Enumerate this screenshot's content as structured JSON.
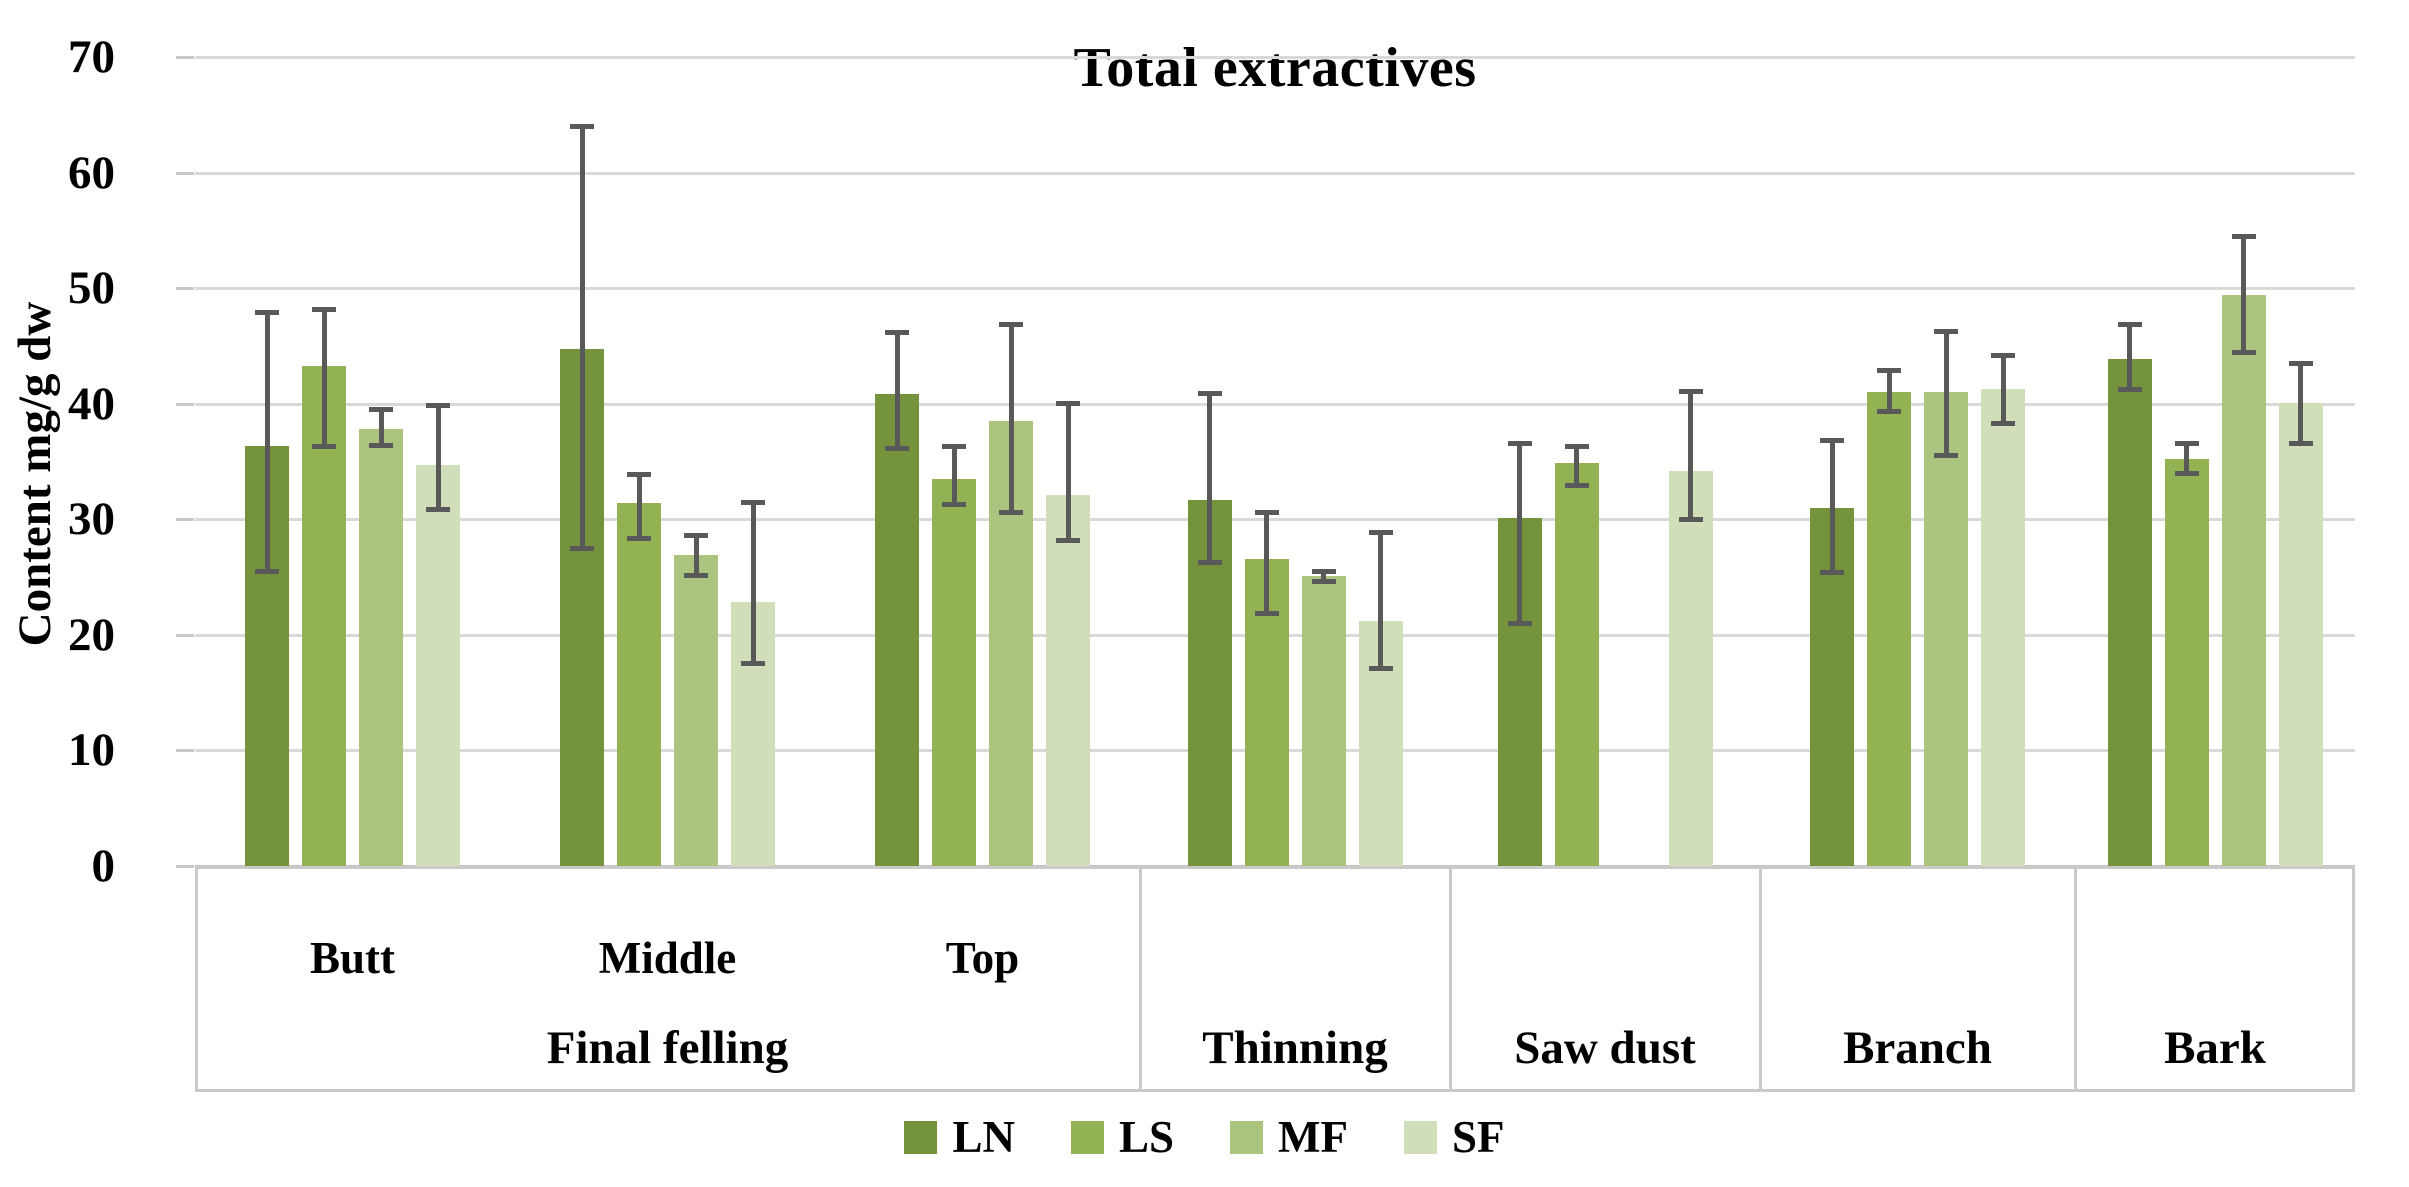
{
  "title": "Total extractives",
  "y_axis": {
    "label": "Content mg/g dw",
    "min": 0,
    "max": 70,
    "step": 10,
    "tick_labels": [
      "0",
      "10",
      "20",
      "30",
      "40",
      "50",
      "60",
      "70"
    ]
  },
  "category_axis": {
    "sections": [
      {
        "label": "Final felling",
        "subs": [
          "Butt",
          "Middle",
          "Top"
        ]
      },
      {
        "label": "Thinning",
        "subs": []
      },
      {
        "label": "Saw dust",
        "subs": []
      },
      {
        "label": "Branch",
        "subs": []
      },
      {
        "label": "Bark",
        "subs": []
      }
    ]
  },
  "legend": {
    "items": [
      "LN",
      "LS",
      "MF",
      "SF"
    ],
    "position": "bottom"
  },
  "colors": {
    "LN": "#75923C",
    "LS": "#93B254",
    "MF": "#ACC57E",
    "SF": "#D0DFBA",
    "error_bar": "#595959",
    "gridline": "#D9D9D9"
  },
  "chart_data": {
    "type": "bar",
    "title": "Total extractives",
    "ylabel": "Content mg/g dw",
    "ylim": [
      0,
      70
    ],
    "grid": true,
    "legend_position": "bottom",
    "categories": [
      "Butt",
      "Middle",
      "Top",
      "Thinning",
      "Saw dust",
      "Branch",
      "Bark"
    ],
    "category_groups": [
      {
        "label": "Final felling",
        "spans": [
          "Butt",
          "Middle",
          "Top"
        ]
      },
      {
        "label": "Thinning",
        "spans": [
          "Thinning"
        ]
      },
      {
        "label": "Saw dust",
        "spans": [
          "Saw dust"
        ]
      },
      {
        "label": "Branch",
        "spans": [
          "Branch"
        ]
      },
      {
        "label": "Bark",
        "spans": [
          "Bark"
        ]
      }
    ],
    "series": [
      {
        "name": "LN",
        "color": "#75923C",
        "values": [
          36.3,
          44.7,
          40.8,
          31.7,
          30.1,
          31.0,
          43.9
        ],
        "error_low": [
          25.5,
          27.5,
          36.2,
          26.3,
          21.0,
          25.4,
          41.3
        ],
        "error_high": [
          47.9,
          64.0,
          46.2,
          40.9,
          36.6,
          36.9,
          46.9
        ]
      },
      {
        "name": "LS",
        "color": "#93B254",
        "values": [
          43.3,
          31.4,
          33.5,
          26.6,
          34.9,
          41.0,
          35.2
        ],
        "error_low": [
          36.3,
          28.4,
          31.3,
          21.9,
          33.0,
          39.4,
          34.0
        ],
        "error_high": [
          48.2,
          33.9,
          36.3,
          30.6,
          36.3,
          42.9,
          36.6
        ]
      },
      {
        "name": "MF",
        "color": "#ACC57E",
        "values": [
          37.8,
          26.9,
          38.5,
          25.1,
          null,
          41.0,
          49.4
        ],
        "error_low": [
          36.4,
          25.2,
          30.6,
          24.7,
          null,
          35.6,
          44.5
        ],
        "error_high": [
          39.5,
          28.6,
          46.9,
          25.5,
          null,
          46.3,
          54.5
        ]
      },
      {
        "name": "SF",
        "color": "#D0DFBA",
        "values": [
          34.7,
          22.8,
          32.1,
          21.2,
          34.2,
          41.3,
          40.1
        ],
        "error_low": [
          30.9,
          17.6,
          28.2,
          17.1,
          30.0,
          38.3,
          36.6
        ],
        "error_high": [
          39.9,
          31.5,
          40.1,
          28.9,
          41.1,
          44.2,
          43.5
        ]
      }
    ]
  }
}
